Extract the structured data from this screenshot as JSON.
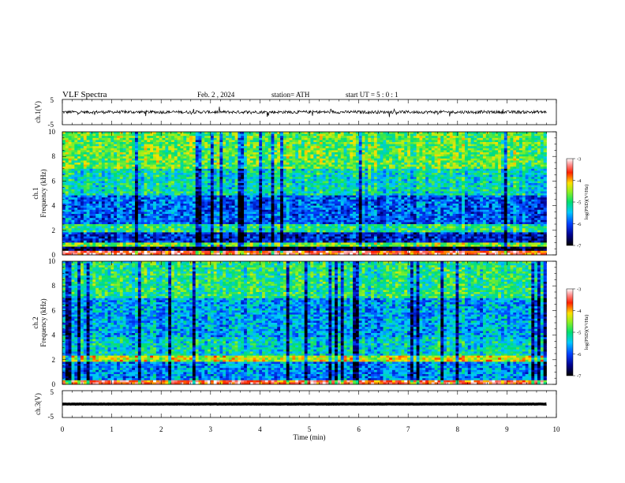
{
  "header": {
    "title": "VLF  Spectra",
    "date": "Feb. 2  , 2024",
    "station": "station= ATH",
    "start": "start  UT  =    5  : 0   : 1"
  },
  "chart_data": [
    {
      "type": "line",
      "name": "ch1-waveform",
      "ylabel": "ch.1(V)",
      "ytick_labels": [
        "5",
        "-5"
      ],
      "ylim": [
        -5,
        5
      ],
      "xlim": [
        0,
        10
      ],
      "x_end": 9.8,
      "baseline": 0.0,
      "fluctuation": 0.6
    },
    {
      "type": "heatmap",
      "name": "ch1-spectrogram",
      "ylabel_line1": "ch.1",
      "ylabel_line2": "Frequency  (kHz)",
      "ytick_labels": [
        "0",
        "2",
        "4",
        "6",
        "8",
        "10"
      ],
      "ylim": [
        0,
        10
      ],
      "xlim": [
        0,
        10
      ],
      "x_end": 9.8,
      "bands": [
        {
          "from": 0,
          "to": 0.3,
          "level": -3.5
        },
        {
          "from": 0.3,
          "to": 0.6,
          "level": -6.8
        },
        {
          "from": 0.6,
          "to": 1.0,
          "level": -4.6
        },
        {
          "from": 1.0,
          "to": 1.8,
          "level": -6.2
        },
        {
          "from": 1.8,
          "to": 2.5,
          "level": -5.0
        },
        {
          "from": 2.5,
          "to": 4.8,
          "level": -5.9
        },
        {
          "from": 4.8,
          "to": 7.0,
          "level": -5.2
        },
        {
          "from": 7.0,
          "to": 10.0,
          "level": -4.7
        }
      ],
      "colorbar": {
        "label": "log(PSD)(V²/Hz)",
        "ticks": [
          "-3",
          "-4",
          "-5",
          "-6",
          "-7"
        ],
        "range": [
          -7,
          -3
        ]
      }
    },
    {
      "type": "heatmap",
      "name": "ch2-spectrogram",
      "ylabel_line1": "ch.2",
      "ylabel_line2": "Frequency  (kHz)",
      "ytick_labels": [
        "0",
        "2",
        "4",
        "6",
        "8",
        "10"
      ],
      "ylim": [
        0,
        10
      ],
      "xlim": [
        0,
        10
      ],
      "x_end": 9.8,
      "bands": [
        {
          "from": 0,
          "to": 0.3,
          "level": -3.6
        },
        {
          "from": 0.3,
          "to": 1.8,
          "level": -5.7
        },
        {
          "from": 1.8,
          "to": 2.3,
          "level": -4.3
        },
        {
          "from": 2.3,
          "to": 3.8,
          "level": -5.3
        },
        {
          "from": 3.8,
          "to": 7.0,
          "level": -5.6
        },
        {
          "from": 7.0,
          "to": 10.0,
          "level": -5.0
        }
      ],
      "colorbar": {
        "label": "log(PSD)(V²/Hz)",
        "ticks": [
          "-3",
          "-4",
          "-5",
          "-6",
          "-7"
        ],
        "range": [
          -7,
          -3
        ]
      }
    },
    {
      "type": "line",
      "name": "ch3-waveform",
      "ylabel": "ch.3(V)",
      "ytick_labels": [
        "5",
        "-5"
      ],
      "ylim": [
        -5,
        5
      ],
      "xlim": [
        0,
        10
      ],
      "x_end": 9.8,
      "baseline": 0.0,
      "fluctuation": 0.05
    }
  ],
  "x_axis": {
    "label": "Time  (min)",
    "tick_labels": [
      "0",
      "1",
      "2",
      "3",
      "4",
      "5",
      "6",
      "7",
      "8",
      "9",
      "10"
    ]
  }
}
